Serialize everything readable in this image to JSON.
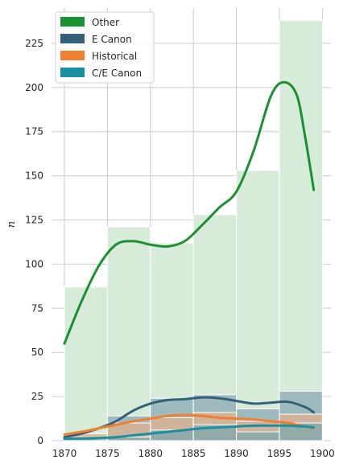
{
  "chart_data": {
    "type": "histogram",
    "ylabel": "n",
    "xlabel": "",
    "xlim": [
      1868.5,
      1901
    ],
    "ylim": [
      0,
      245
    ],
    "grid": true,
    "legend_position": "top-left",
    "x_ticks": [
      1870,
      1875,
      1880,
      1885,
      1890,
      1895,
      1900
    ],
    "y_ticks": [
      0,
      25,
      50,
      75,
      100,
      125,
      150,
      175,
      200,
      225
    ],
    "bin_edges": [
      1870,
      1875,
      1880,
      1885,
      1890,
      1895,
      1900
    ],
    "series": [
      {
        "name": "Other",
        "color": "#1a9030",
        "fill": "#d6ecd9",
        "counts": [
          87,
          121,
          112,
          128,
          153,
          238
        ],
        "kde": [
          [
            1870,
            55
          ],
          [
            1872,
            79
          ],
          [
            1874,
            99
          ],
          [
            1876,
            111
          ],
          [
            1878,
            113
          ],
          [
            1880,
            111
          ],
          [
            1882,
            110
          ],
          [
            1884,
            113
          ],
          [
            1886,
            122
          ],
          [
            1888,
            132
          ],
          [
            1890,
            141
          ],
          [
            1892,
            164
          ],
          [
            1894,
            195
          ],
          [
            1895.5,
            203
          ],
          [
            1897,
            196
          ],
          [
            1898,
            172
          ],
          [
            1899,
            142
          ]
        ]
      },
      {
        "name": "E Canon",
        "color": "#35607a",
        "fill": "#8aa9b5",
        "counts": [
          2,
          14,
          24,
          26,
          18,
          28
        ],
        "kde": [
          [
            1870,
            2
          ],
          [
            1872,
            4
          ],
          [
            1874,
            7
          ],
          [
            1876,
            11
          ],
          [
            1878,
            17
          ],
          [
            1880,
            21
          ],
          [
            1882,
            23
          ],
          [
            1884,
            23.5
          ],
          [
            1886,
            24.5
          ],
          [
            1888,
            24
          ],
          [
            1890,
            22.5
          ],
          [
            1892,
            21
          ],
          [
            1894,
            21.5
          ],
          [
            1896,
            22
          ],
          [
            1898,
            19
          ],
          [
            1899,
            16
          ]
        ]
      },
      {
        "name": "Historical",
        "color": "#f07f30",
        "fill": "#e0b08f",
        "counts": [
          4,
          10,
          13,
          16,
          11,
          15
        ],
        "kde": [
          [
            1870,
            3.5
          ],
          [
            1872,
            5
          ],
          [
            1874,
            7
          ],
          [
            1876,
            9
          ],
          [
            1878,
            11
          ],
          [
            1880,
            12.5
          ],
          [
            1882,
            14
          ],
          [
            1884,
            14.5
          ],
          [
            1886,
            14
          ],
          [
            1888,
            13
          ],
          [
            1890,
            12.5
          ],
          [
            1892,
            12
          ],
          [
            1894,
            11
          ],
          [
            1896,
            10
          ],
          [
            1898,
            8
          ],
          [
            1899,
            7
          ]
        ]
      },
      {
        "name": "C/E Canon",
        "color": "#1a8fa0",
        "fill": "#7fa8ac",
        "counts": [
          1,
          2,
          6,
          9,
          5,
          10
        ],
        "kde": [
          [
            1870,
            1
          ],
          [
            1872,
            1.2
          ],
          [
            1874,
            1.5
          ],
          [
            1876,
            2
          ],
          [
            1878,
            3
          ],
          [
            1880,
            4
          ],
          [
            1882,
            5
          ],
          [
            1884,
            6
          ],
          [
            1886,
            7
          ],
          [
            1888,
            7.5
          ],
          [
            1890,
            8
          ],
          [
            1892,
            8.5
          ],
          [
            1894,
            8.5
          ],
          [
            1896,
            8.5
          ],
          [
            1898,
            8
          ],
          [
            1899,
            7.5
          ]
        ]
      }
    ]
  }
}
